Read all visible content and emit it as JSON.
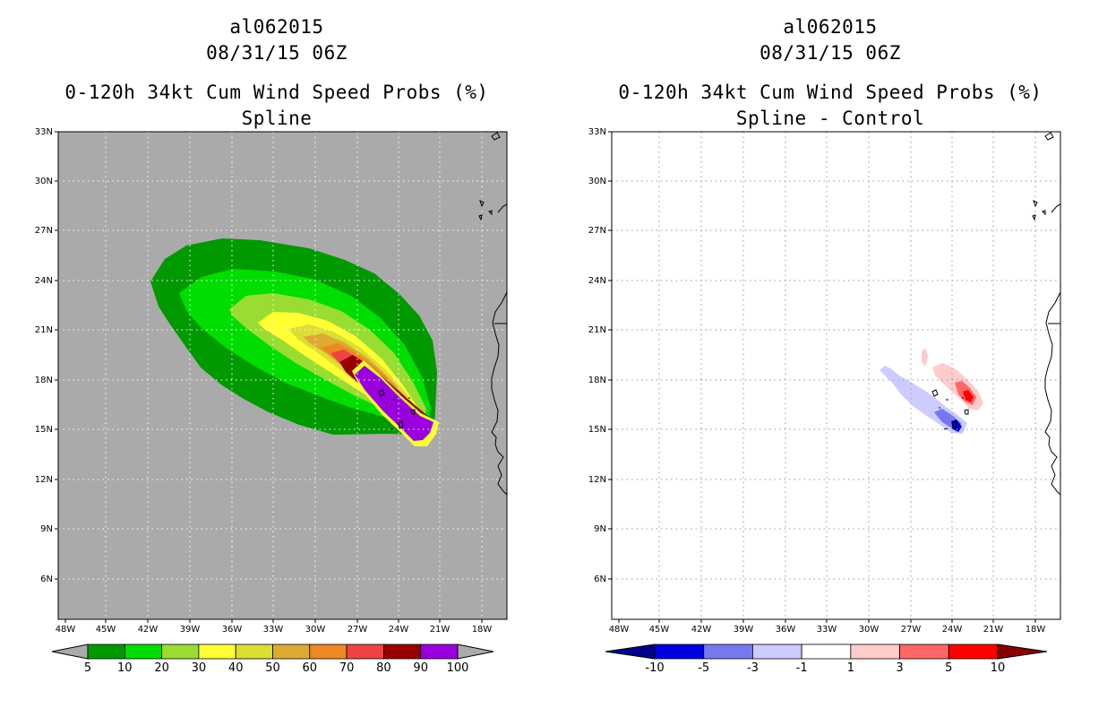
{
  "left_panel": {
    "title_lines": [
      "al062015",
      "08/31/15 06Z",
      "0-120h 34kt Cum Wind Speed Probs (%)",
      "Spline"
    ],
    "background_color": "#aaaaaa",
    "colorbar": {
      "colors": [
        "#009900",
        "#00dd00",
        "#99dd33",
        "#ffff33",
        "#dddd33",
        "#ddaa33",
        "#ee8822",
        "#ee4444",
        "#990000",
        "#9900dd"
      ],
      "end_colors": [
        "#aaaaaa",
        "#aaaaaa"
      ],
      "labels": [
        "5",
        "10",
        "20",
        "30",
        "40",
        "50",
        "60",
        "70",
        "80",
        "90",
        "100"
      ]
    }
  },
  "right_panel": {
    "title_lines": [
      "al062015",
      "08/31/15 06Z",
      "0-120h 34kt Cum Wind Speed Probs (%)",
      "Spline - Control"
    ],
    "background_color": "#ffffff",
    "colorbar": {
      "colors": [
        "#0000dd",
        "#7777ee",
        "#ccccff",
        "#ffffff",
        "#ffcccc",
        "#ff6666",
        "#ff0000"
      ],
      "end_colors": [
        "#000088",
        "#880000"
      ],
      "labels": [
        "-10",
        "-5",
        "-3",
        "-1",
        "1",
        "3",
        "5",
        "10"
      ]
    }
  },
  "axes": {
    "lat_labels": [
      "33N",
      "30N",
      "27N",
      "24N",
      "21N",
      "18N",
      "15N",
      "12N",
      "9N",
      "6N"
    ],
    "lon_labels": [
      "48W",
      "45W",
      "42W",
      "39W",
      "36W",
      "33W",
      "30W",
      "27W",
      "24W",
      "21W",
      "18W"
    ]
  }
}
